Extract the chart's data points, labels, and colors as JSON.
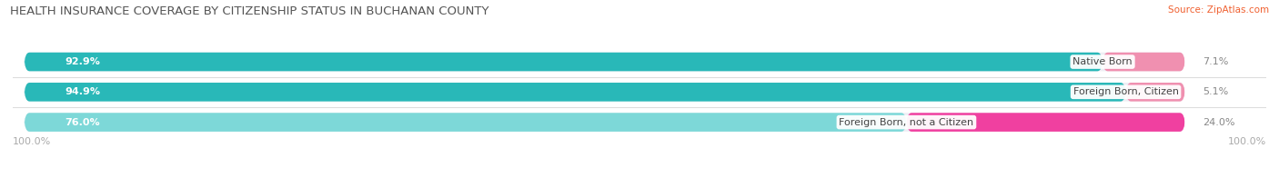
{
  "title": "HEALTH INSURANCE COVERAGE BY CITIZENSHIP STATUS IN BUCHANAN COUNTY",
  "source": "Source: ZipAtlas.com",
  "categories": [
    "Native Born",
    "Foreign Born, Citizen",
    "Foreign Born, not a Citizen"
  ],
  "with_coverage": [
    92.9,
    94.9,
    76.0
  ],
  "without_coverage": [
    7.1,
    5.1,
    24.0
  ],
  "color_with": [
    "#29b8b8",
    "#29b8b8",
    "#7dd8d8"
  ],
  "color_without": [
    "#f090b0",
    "#f090b0",
    "#f040a0"
  ],
  "bar_bg_color": "#eeeef4",
  "background_color": "#ffffff",
  "title_fontsize": 9.5,
  "label_fontsize": 8,
  "tick_fontsize": 8,
  "source_fontsize": 7.5,
  "total": 100.0,
  "bar_height": 0.62,
  "bar_gap": 0.18,
  "legend_color_with": "#29b8b8",
  "legend_color_without": "#f090b0"
}
